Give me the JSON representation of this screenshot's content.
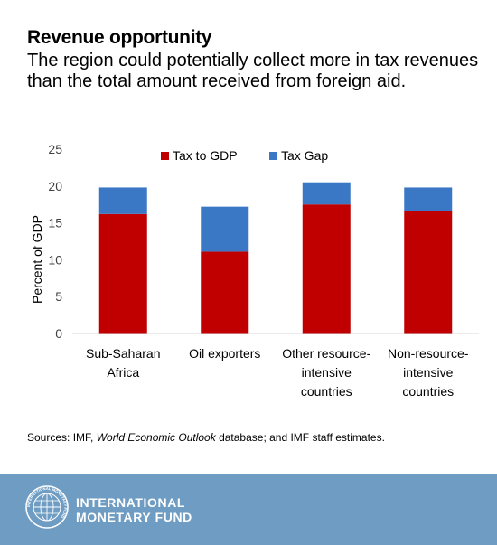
{
  "title": "Revenue opportunity",
  "subtitle": "The region could potentially collect more in tax revenues than the total amount received from foreign aid.",
  "source": {
    "prefix": "Sources: IMF, ",
    "italic": "World Economic Outlook",
    "suffix": " database; and IMF staff estimates."
  },
  "footer": {
    "org_line1": "INTERNATIONAL",
    "org_line2": "MONETARY FUND",
    "seal_text": "INTERNATIONAL MONETARY FUND"
  },
  "colors": {
    "tax_to_gdp": "#c00000",
    "tax_gap": "#3a78c6",
    "footer_bg": "#6e9cc3"
  },
  "chart_data": {
    "type": "bar",
    "stacked": true,
    "categories": [
      [
        "Sub-Saharan",
        "Africa"
      ],
      [
        "Oil exporters"
      ],
      [
        "Other resource-",
        "intensive",
        "countries"
      ],
      [
        "Non-resource-",
        "intensive",
        "countries"
      ]
    ],
    "series": [
      {
        "name": "Tax to GDP",
        "values": [
          16.2,
          11.1,
          17.5,
          16.6
        ],
        "color": "#c00000"
      },
      {
        "name": "Tax Gap",
        "values": [
          3.6,
          6.1,
          3.0,
          3.2
        ],
        "color": "#3a78c6"
      }
    ],
    "ylabel": "Percent of GDP",
    "ylim": [
      0,
      25
    ],
    "yticks": [
      0,
      5,
      10,
      15,
      20,
      25
    ],
    "grid": false,
    "legend": "top"
  }
}
